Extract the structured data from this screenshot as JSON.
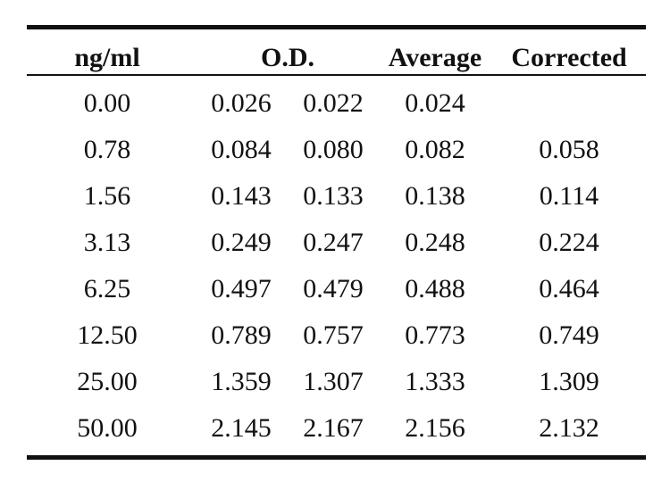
{
  "table": {
    "headers": {
      "concentration": "ng/ml",
      "od": "O.D.",
      "average": "Average",
      "corrected": "Corrected"
    },
    "rows": [
      {
        "concentration": "0.00",
        "od1": "0.026",
        "od2": "0.022",
        "average": "0.024",
        "corrected": ""
      },
      {
        "concentration": "0.78",
        "od1": "0.084",
        "od2": "0.080",
        "average": "0.082",
        "corrected": "0.058"
      },
      {
        "concentration": "1.56",
        "od1": "0.143",
        "od2": "0.133",
        "average": "0.138",
        "corrected": "0.114"
      },
      {
        "concentration": "3.13",
        "od1": "0.249",
        "od2": "0.247",
        "average": "0.248",
        "corrected": "0.224"
      },
      {
        "concentration": "6.25",
        "od1": "0.497",
        "od2": "0.479",
        "average": "0.488",
        "corrected": "0.464"
      },
      {
        "concentration": "12.50",
        "od1": "0.789",
        "od2": "0.757",
        "average": "0.773",
        "corrected": "0.749"
      },
      {
        "concentration": "25.00",
        "od1": "1.359",
        "od2": "1.307",
        "average": "1.333",
        "corrected": "1.309"
      },
      {
        "concentration": "50.00",
        "od1": "2.145",
        "od2": "2.167",
        "average": "2.156",
        "corrected": "2.132"
      }
    ]
  }
}
